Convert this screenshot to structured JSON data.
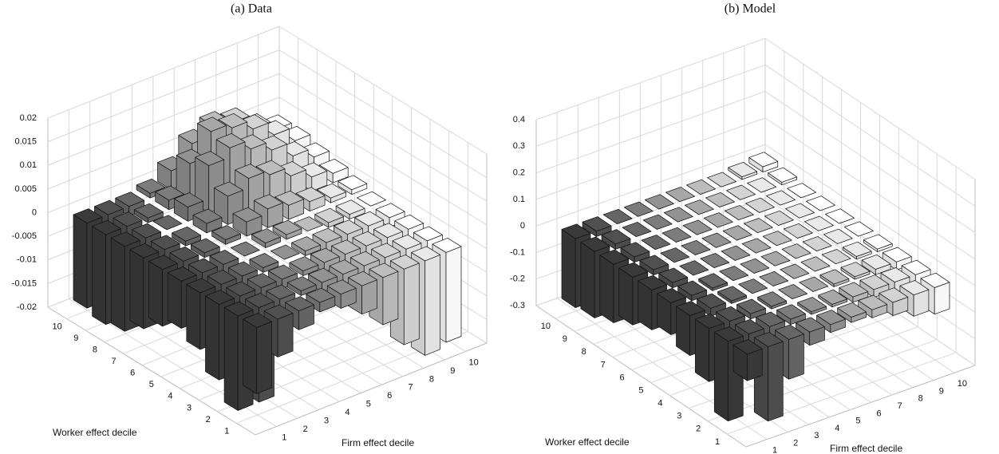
{
  "chart_data": [
    {
      "type": "bar3d",
      "title": "(a) Data",
      "x_label": "Firm effect decile",
      "y_label": "Worker effect decile",
      "xlim": [
        0,
        11
      ],
      "ylim": [
        0,
        11
      ],
      "zlim": [
        -0.02,
        0.02
      ],
      "xticks": [
        1,
        2,
        3,
        4,
        5,
        6,
        7,
        8,
        9,
        10
      ],
      "yticks": [
        1,
        2,
        3,
        4,
        5,
        6,
        7,
        8,
        9,
        10
      ],
      "zticks": [
        -0.02,
        -0.015,
        -0.01,
        -0.005,
        0,
        0.005,
        0.01,
        0.015,
        0.02
      ],
      "colormap": [
        "#3a3a3a",
        "#ffffff"
      ],
      "grid": true,
      "values": [
        [
          -0.014,
          -0.008,
          -0.004,
          -0.002,
          -0.003,
          -0.006,
          -0.01,
          -0.016,
          -0.02,
          -0.019
        ],
        [
          -0.02,
          -0.02,
          -0.004,
          -0.001,
          -0.002,
          -0.004,
          -0.008,
          -0.012,
          -0.014,
          -0.012
        ],
        [
          -0.016,
          -0.005,
          -0.003,
          -0.002,
          -0.001,
          -0.002,
          -0.004,
          -0.006,
          -0.007,
          -0.006
        ],
        [
          -0.012,
          -0.006,
          -0.003,
          -0.001,
          0,
          -0.001,
          -0.002,
          -0.003,
          -0.003,
          -0.002
        ],
        [
          -0.01,
          -0.005,
          -0.002,
          0,
          0.001,
          0.001,
          0,
          -0.001,
          -0.001,
          0
        ],
        [
          -0.012,
          -0.004,
          -0.001,
          0.001,
          0.003,
          0.004,
          0.003,
          0.002,
          0.001,
          0.001
        ],
        [
          -0.015,
          -0.004,
          -0.001,
          0.002,
          0.006,
          0.008,
          0.007,
          0.005,
          0.003,
          0.002
        ],
        [
          -0.018,
          -0.004,
          0,
          0.003,
          0.01,
          0.012,
          0.01,
          0.008,
          0.005,
          0.003
        ],
        [
          -0.019,
          -0.005,
          -0.001,
          0.002,
          0.008,
          0.013,
          0.012,
          0.01,
          0.007,
          0.004
        ],
        [
          -0.018,
          -0.006,
          -0.002,
          0.001,
          0.004,
          0.008,
          0.01,
          0.009,
          0.006,
          0.004
        ]
      ]
    },
    {
      "type": "bar3d",
      "title": "(b) Model",
      "x_label": "Firm effect decile",
      "y_label": "Worker effect decile",
      "xlim": [
        0,
        11
      ],
      "ylim": [
        0,
        11
      ],
      "zlim": [
        -0.3,
        0.4
      ],
      "xticks": [
        1,
        2,
        3,
        4,
        5,
        6,
        7,
        8,
        9,
        10
      ],
      "yticks": [
        1,
        2,
        3,
        4,
        5,
        6,
        7,
        8,
        9,
        10
      ],
      "zticks": [
        -0.3,
        -0.2,
        -0.1,
        0,
        0.1,
        0.2,
        0.3,
        0.4
      ],
      "colormap": [
        "#3a3a3a",
        "#ffffff"
      ],
      "grid": true,
      "values": [
        [
          -0.1,
          -0.28,
          -0.15,
          -0.05,
          -0.03,
          -0.02,
          -0.03,
          -0.05,
          -0.08,
          -0.1
        ],
        [
          -0.3,
          -0.1,
          -0.04,
          -0.02,
          -0.01,
          -0.01,
          -0.02,
          -0.03,
          -0.05,
          -0.06
        ],
        [
          -0.2,
          -0.05,
          -0.02,
          -0.01,
          0,
          0,
          -0.01,
          -0.01,
          -0.02,
          -0.03
        ],
        [
          -0.15,
          -0.03,
          -0.01,
          0,
          0,
          0,
          0,
          0,
          -0.01,
          -0.01
        ],
        [
          -0.12,
          -0.02,
          -0.01,
          0,
          0,
          0,
          0,
          0,
          0,
          0
        ],
        [
          -0.15,
          -0.02,
          0,
          0,
          0,
          0,
          0,
          0,
          0,
          0
        ],
        [
          -0.18,
          -0.02,
          0,
          0,
          0,
          0,
          0,
          0,
          0,
          0
        ],
        [
          -0.22,
          -0.02,
          0,
          0,
          0,
          0,
          0,
          0,
          0,
          0
        ],
        [
          -0.25,
          -0.02,
          0,
          0,
          0,
          0,
          0,
          0,
          0,
          0.01
        ],
        [
          -0.26,
          -0.02,
          0,
          0,
          0,
          0,
          0,
          0,
          0.01,
          0.02
        ]
      ]
    }
  ]
}
